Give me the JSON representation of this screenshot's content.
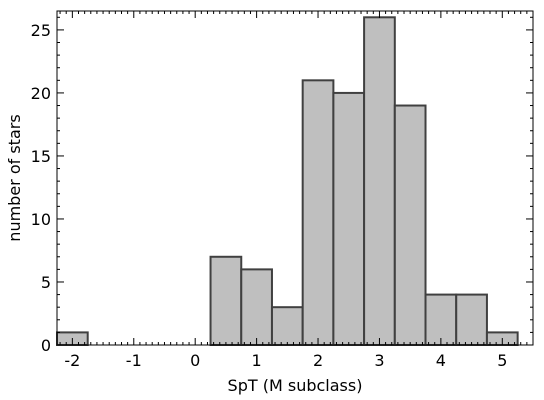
{
  "chart_data": {
    "type": "bar",
    "title": "",
    "xlabel": "SpT (M subclass)",
    "ylabel": "number of stars",
    "xlim": [
      -2.25,
      5.5
    ],
    "ylim": [
      0,
      26.5
    ],
    "grid": false,
    "bar_color": "#bfbfbf",
    "edge_color": "#404040",
    "x_ticks": [
      {
        "value": -2,
        "label": "-2"
      },
      {
        "value": -1,
        "label": "-1"
      },
      {
        "value": 0,
        "label": "0"
      },
      {
        "value": 1,
        "label": "1"
      },
      {
        "value": 2,
        "label": "2"
      },
      {
        "value": 3,
        "label": "3"
      },
      {
        "value": 4,
        "label": "4"
      },
      {
        "value": 5,
        "label": "5"
      }
    ],
    "y_ticks": [
      {
        "value": 0,
        "label": "0"
      },
      {
        "value": 5,
        "label": "5"
      },
      {
        "value": 10,
        "label": "10"
      },
      {
        "value": 15,
        "label": "15"
      },
      {
        "value": 20,
        "label": "20"
      },
      {
        "value": 25,
        "label": "25"
      }
    ],
    "bins": [
      {
        "x0": -2.25,
        "x1": -1.75,
        "count": 1
      },
      {
        "x0": -1.75,
        "x1": -1.25,
        "count": 0
      },
      {
        "x0": -1.25,
        "x1": -0.75,
        "count": 0
      },
      {
        "x0": -0.75,
        "x1": -0.25,
        "count": 0
      },
      {
        "x0": -0.25,
        "x1": 0.25,
        "count": 0
      },
      {
        "x0": 0.25,
        "x1": 0.75,
        "count": 7
      },
      {
        "x0": 0.75,
        "x1": 1.25,
        "count": 6
      },
      {
        "x0": 1.25,
        "x1": 1.75,
        "count": 3
      },
      {
        "x0": 1.75,
        "x1": 2.25,
        "count": 21
      },
      {
        "x0": 2.25,
        "x1": 2.75,
        "count": 20
      },
      {
        "x0": 2.75,
        "x1": 3.25,
        "count": 26
      },
      {
        "x0": 3.25,
        "x1": 3.75,
        "count": 19
      },
      {
        "x0": 3.75,
        "x1": 4.25,
        "count": 4
      },
      {
        "x0": 4.25,
        "x1": 4.75,
        "count": 4
      },
      {
        "x0": 4.75,
        "x1": 5.25,
        "count": 1
      }
    ]
  }
}
